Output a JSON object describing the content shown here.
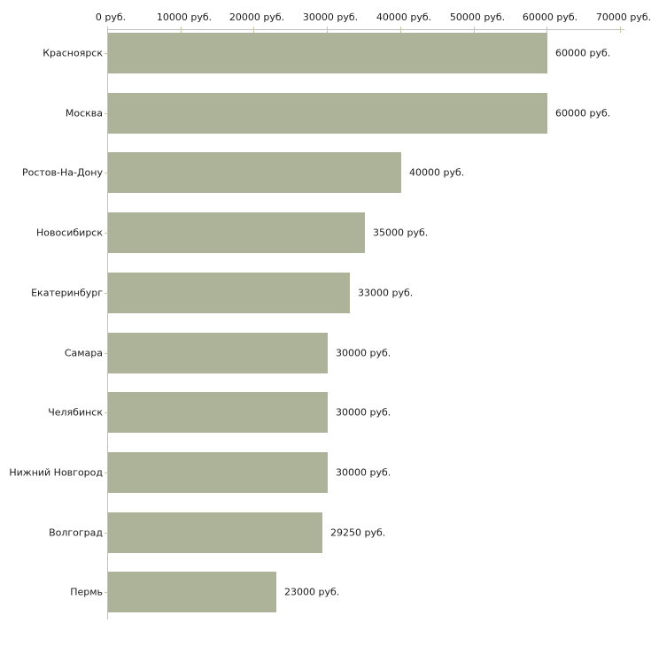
{
  "chart_data": {
    "type": "bar",
    "orientation": "horizontal",
    "title": "",
    "xlabel": "",
    "ylabel": "",
    "unit": "руб.",
    "categories": [
      "Красноярск",
      "Москва",
      "Ростов-На-Дону",
      "Новосибирск",
      "Екатеринбург",
      "Самара",
      "Челябинск",
      "Нижний Новгород",
      "Волгоград",
      "Пермь"
    ],
    "values": [
      60000,
      60000,
      40000,
      35000,
      33000,
      30000,
      30000,
      30000,
      29250,
      23000
    ],
    "bar_labels": [
      "60000 руб.",
      "60000 руб.",
      "40000 руб.",
      "35000 руб.",
      "33000 руб.",
      "30000 руб.",
      "30000 руб.",
      "30000 руб.",
      "29250 руб.",
      "23000 руб."
    ],
    "x_tick_values": [
      0,
      10000,
      20000,
      30000,
      40000,
      50000,
      60000,
      70000
    ],
    "x_tick_labels": [
      "0 руб.",
      "10000 руб.",
      "20000 руб.",
      "30000 руб.",
      "40000 руб.",
      "50000 руб.",
      "60000 руб.",
      "70000 руб."
    ],
    "xlim": [
      0,
      70000
    ],
    "grid": "off",
    "legend": "none",
    "colors": {
      "bar": "#adb399",
      "tick": "#c6c6a2",
      "axis": "#c0c0c0",
      "text": "#1c1c1c",
      "background": "#ffffff"
    }
  }
}
